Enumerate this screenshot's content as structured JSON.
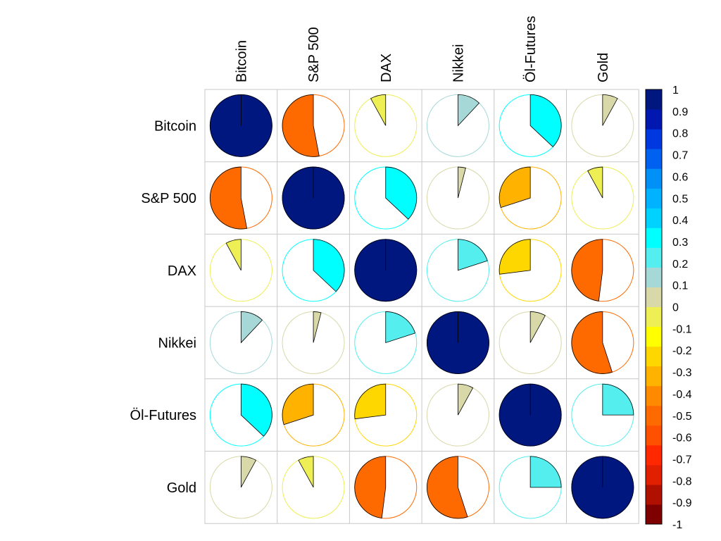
{
  "chart_data": {
    "type": "heatmap",
    "method": "pie",
    "variables": [
      "Bitcoin",
      "S&P 500",
      "DAX",
      "Nikkei",
      "Öl-Futures",
      "Gold"
    ],
    "matrix": [
      [
        1.0,
        -0.53,
        -0.08,
        0.12,
        0.37,
        0.08
      ],
      [
        -0.53,
        1.0,
        0.37,
        0.04,
        -0.3,
        -0.08
      ],
      [
        -0.08,
        0.37,
        1.0,
        0.2,
        -0.27,
        -0.48
      ],
      [
        0.12,
        0.04,
        0.2,
        1.0,
        0.08,
        -0.55
      ],
      [
        0.37,
        -0.3,
        -0.27,
        0.08,
        1.0,
        0.25
      ],
      [
        0.08,
        -0.08,
        -0.48,
        -0.55,
        0.25,
        1.0
      ]
    ],
    "colorbar": {
      "ticks": [
        "1",
        "0.9",
        "0.8",
        "0.7",
        "0.6",
        "0.5",
        "0.4",
        "0.3",
        "0.2",
        "0.1",
        "0",
        "-0.1",
        "-0.2",
        "-0.3",
        "-0.4",
        "-0.5",
        "-0.6",
        "-0.7",
        "-0.8",
        "-0.9",
        "-1"
      ],
      "range": [
        -1,
        1
      ]
    },
    "colors": [
      "#7F0000",
      "#B01000",
      "#E02000",
      "#FF2800",
      "#FF5000",
      "#FF6A00",
      "#FF8A00",
      "#FFB200",
      "#FFD700",
      "#FFFF00",
      "#EEEE55",
      "#D8D8A8",
      "#A6D8D8",
      "#55EEEE",
      "#00FFFF",
      "#00D2FF",
      "#00B2FF",
      "#0090F8",
      "#0060F0",
      "#0038E0",
      "#0018B0",
      "#001780"
    ]
  }
}
